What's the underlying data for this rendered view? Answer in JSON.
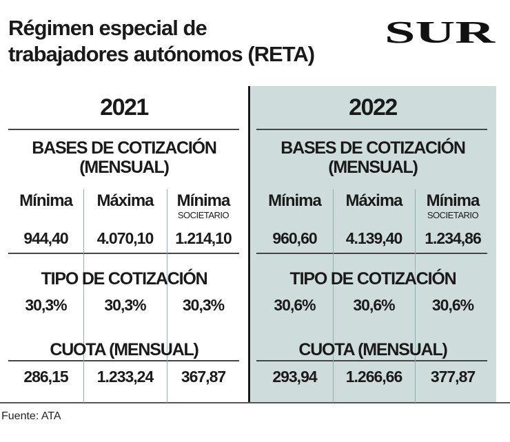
{
  "title": {
    "line1": "Régimen especial de",
    "line2": "trabajadores autónomos (RETA)"
  },
  "logo": {
    "text": "SUR"
  },
  "colors": {
    "panel_2022": "#cfdcdc",
    "divider": "#1a1a1a",
    "text": "#1a1a1a"
  },
  "panels": [
    {
      "year": "2021",
      "bases_title_1": "BASES DE COTIZACIÓN",
      "bases_title_2": "(MENSUAL)",
      "columns": [
        {
          "label": "Mínima",
          "sublabel": "",
          "base": "944,40",
          "tipo": "30,3%",
          "cuota": "286,15"
        },
        {
          "label": "Máxima",
          "sublabel": "",
          "base": "4.070,10",
          "tipo": "30,3%",
          "cuota": "1.233,24"
        },
        {
          "label": "Mínima",
          "sublabel": "SOCIETARIO",
          "base": "1.214,10",
          "tipo": "30,3%",
          "cuota": "367,87"
        }
      ],
      "tipo_title": "TIPO DE COTIZACIÓN",
      "cuota_title": "CUOTA (MENSUAL)"
    },
    {
      "year": "2022",
      "bases_title_1": "BASES DE COTIZACIÓN",
      "bases_title_2": "(MENSUAL)",
      "columns": [
        {
          "label": "Mínima",
          "sublabel": "",
          "base": "960,60",
          "tipo": "30,6%",
          "cuota": "293,94"
        },
        {
          "label": "Máxima",
          "sublabel": "",
          "base": "4.139,40",
          "tipo": "30,6%",
          "cuota": "1.266,66"
        },
        {
          "label": "Mínima",
          "sublabel": "SOCIETARIO",
          "base": "1.234,86",
          "tipo": "30,6%",
          "cuota": "377,87"
        }
      ],
      "tipo_title": "TIPO DE COTIZACIÓN",
      "cuota_title": "CUOTA (MENSUAL)"
    }
  ],
  "source": "Fuente: ATA"
}
